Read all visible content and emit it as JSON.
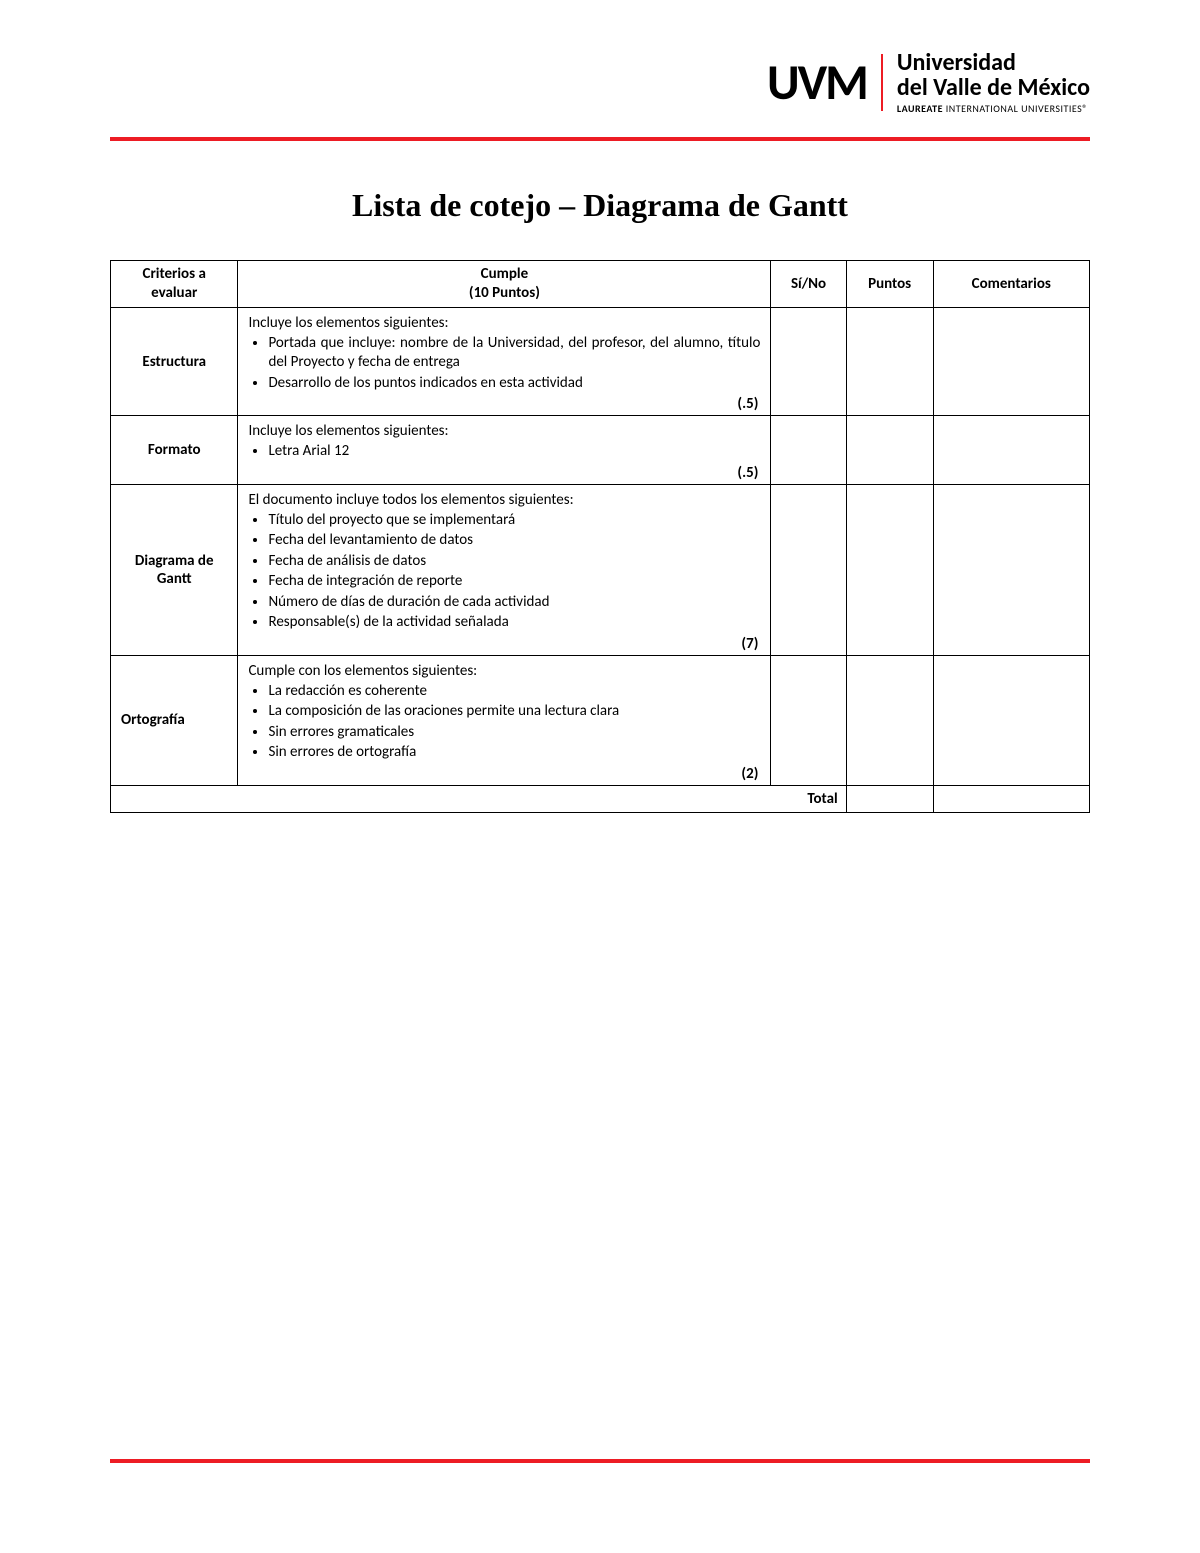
{
  "logo": {
    "uvm": "UVM",
    "line1": "Universidad",
    "line2": "del Valle de México",
    "line3_bold": "LAUREATE",
    "line3_rest": " INTERNATIONAL UNIVERSITIES®"
  },
  "title": "Lista de cotejo – Diagrama de Gantt",
  "table": {
    "headers": {
      "criterios_l1": "Criterios a",
      "criterios_l2": "evaluar",
      "cumple_l1": "Cumple",
      "cumple_l2": "(10 Puntos)",
      "sino": "Sí/No",
      "puntos": "Puntos",
      "comentarios": "Comentarios"
    },
    "rows": [
      {
        "criterio": "Estructura",
        "crit_align": "center",
        "intro": "Incluye los elementos siguientes:",
        "bullets_justify": true,
        "bullets": [
          "Portada que incluye: nombre de la Universidad, del profesor, del alumno, título del Proyecto y fecha de entrega",
          "Desarrollo de los puntos indicados en esta actividad"
        ],
        "pts": "(.5)"
      },
      {
        "criterio": "Formato",
        "crit_align": "center",
        "intro": "Incluye los elementos siguientes:",
        "bullets_justify": false,
        "bullets": [
          "Letra Arial 12"
        ],
        "pts": "(.5)"
      },
      {
        "criterio": "Diagrama de Gantt",
        "crit_align": "center",
        "intro": "El documento incluye todos los elementos siguientes:",
        "bullets_justify": false,
        "bullets": [
          "Título del proyecto que se implementará",
          "Fecha del levantamiento de datos",
          "Fecha de análisis de datos",
          "Fecha de integración de reporte",
          "Número de días de duración de cada actividad",
          "Responsable(s) de la actividad señalada"
        ],
        "pts": "(7)"
      },
      {
        "criterio": "Ortografía",
        "crit_align": "left",
        "intro": "Cumple con los elementos siguientes:",
        "bullets_justify": false,
        "bullets": [
          "La redacción es coherente",
          "La composición de las oraciones permite una lectura clara",
          "Sin errores gramaticales",
          "Sin errores de ortografía"
        ],
        "pts": "(2)"
      }
    ],
    "total_label": "Total"
  },
  "colors": {
    "accent": "#ed1c24",
    "text": "#000000",
    "background": "#ffffff"
  }
}
